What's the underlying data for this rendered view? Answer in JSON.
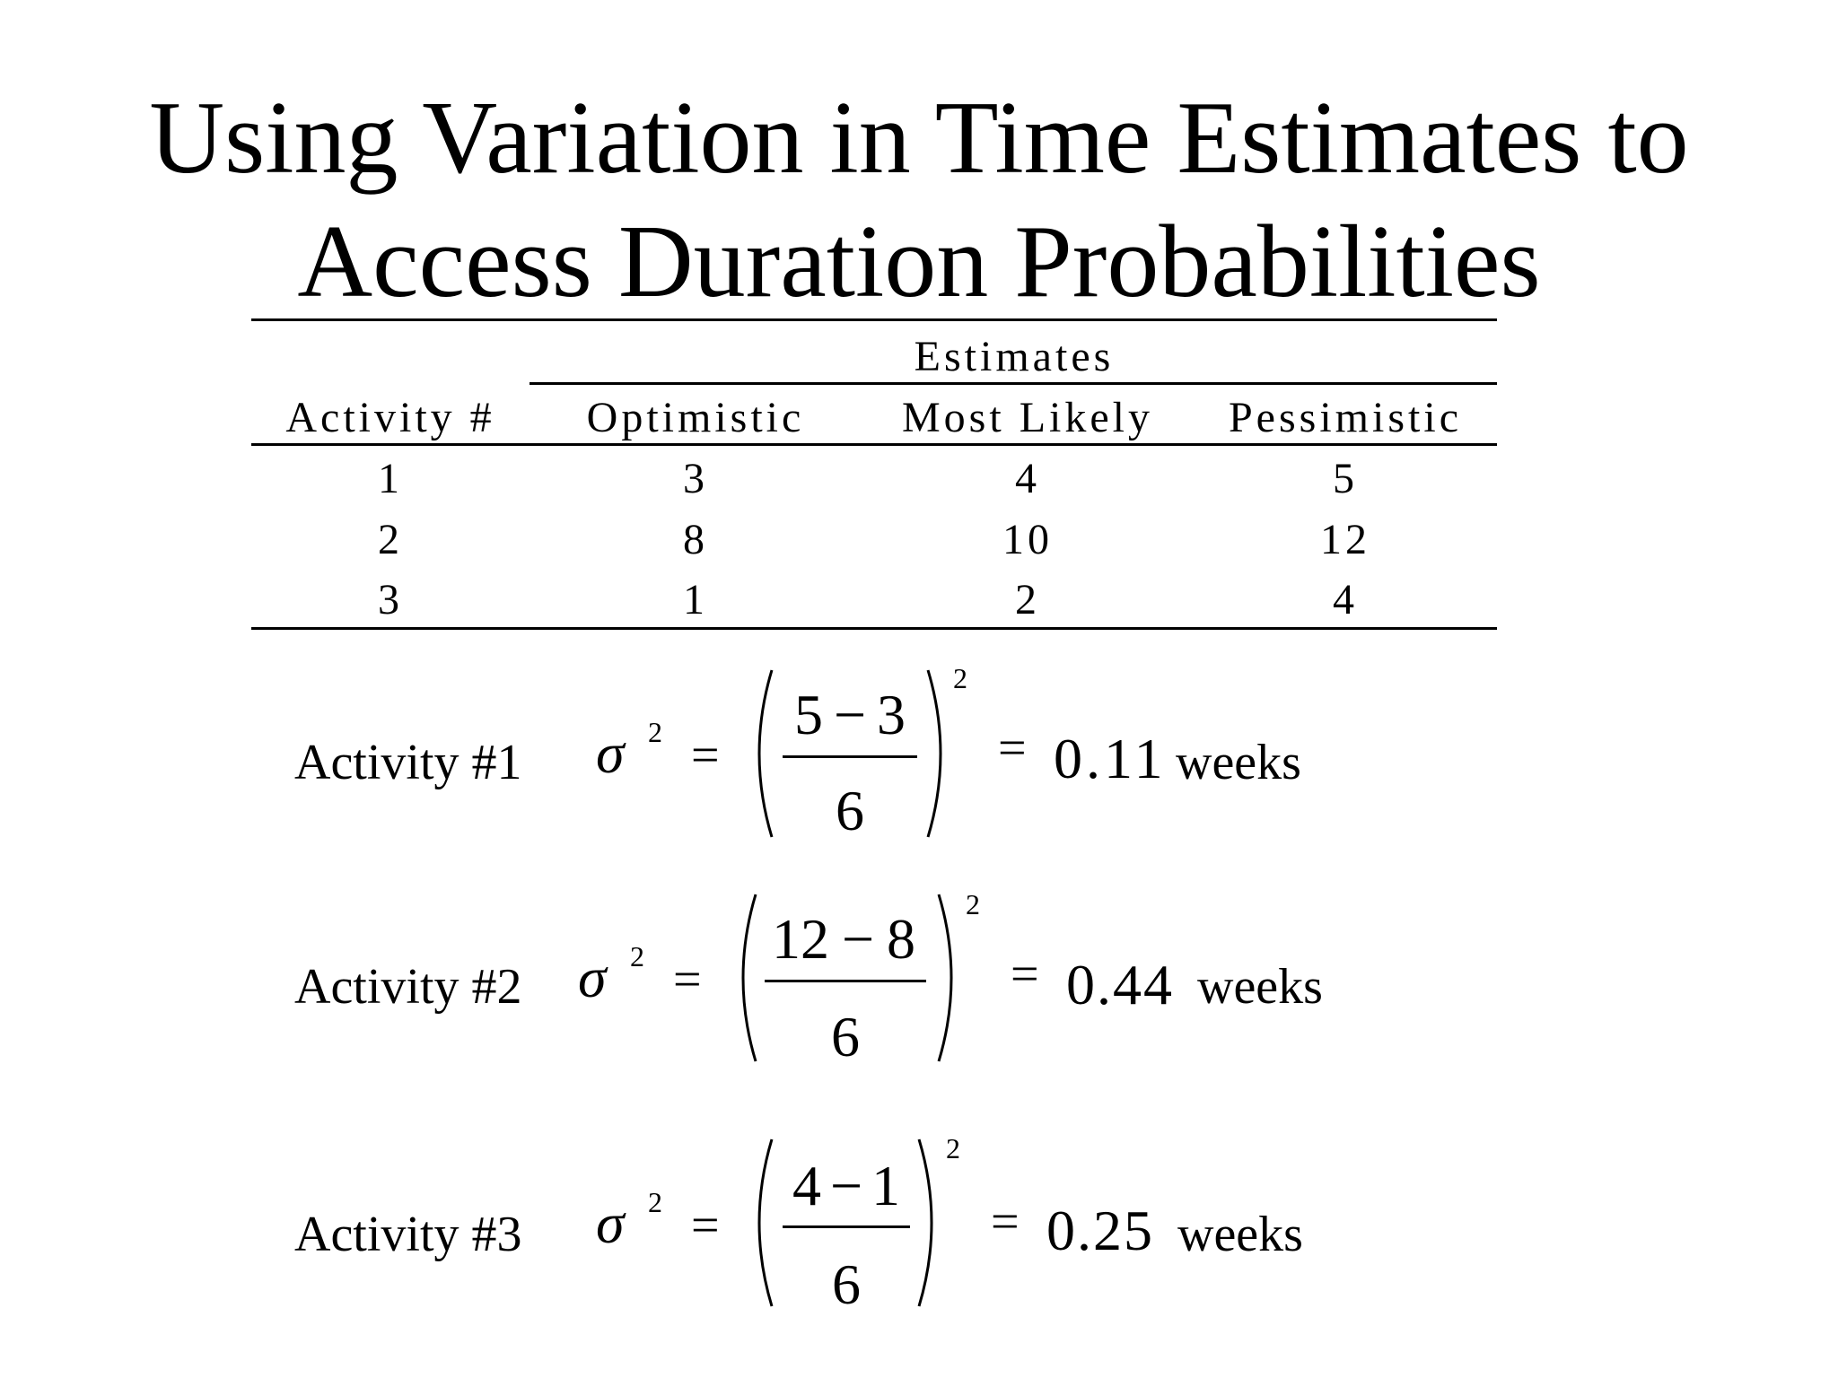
{
  "title": {
    "line1": "Using Variation in Time Estimates to",
    "line2": "Access Duration Probabilities"
  },
  "table": {
    "group_header": "Estimates",
    "columns": [
      "Activity #",
      "Optimistic",
      "Most Likely",
      "Pessimistic"
    ],
    "rows": [
      [
        "1",
        "3",
        "4",
        "5"
      ],
      [
        "2",
        "8",
        "10",
        "12"
      ],
      [
        "3",
        "1",
        "2",
        "4"
      ]
    ]
  },
  "formulas": [
    {
      "label": "Activity #1",
      "symbol": "σ",
      "power": "2",
      "equals": "=",
      "pessimistic": "5",
      "minus": "−",
      "optimistic": "3",
      "denominator": "6",
      "outer_power": "2",
      "result": "0.11",
      "unit": "weeks"
    },
    {
      "label": "Activity #2",
      "symbol": "σ",
      "power": "2",
      "equals": "=",
      "pessimistic": "12",
      "minus": "−",
      "optimistic": "8",
      "denominator": "6",
      "outer_power": "2",
      "result": "0.44",
      "unit": "weeks"
    },
    {
      "label": "Activity #3",
      "symbol": "σ",
      "power": "2",
      "equals": "=",
      "pessimistic": "4",
      "minus": "−",
      "optimistic": "1",
      "denominator": "6",
      "outer_power": "2",
      "result": "0.25",
      "unit": "weeks"
    }
  ]
}
